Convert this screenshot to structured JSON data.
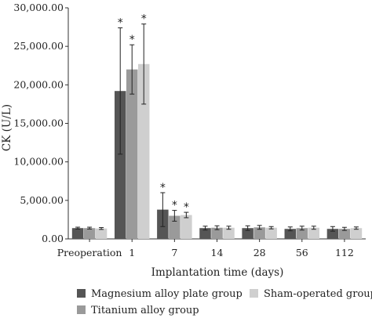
{
  "chart_data": {
    "type": "bar",
    "title": "",
    "xlabel": "Implantation time (days)",
    "ylabel": "CK (U/L)",
    "ylim": [
      0,
      30000
    ],
    "y_ticks": [
      "0.00",
      "5,000.00",
      "10,000.00",
      "15,000.00",
      "20,000.00",
      "25,000.00",
      "30,000.00"
    ],
    "y_tick_values": [
      0,
      5000,
      10000,
      15000,
      20000,
      25000,
      30000
    ],
    "categories": [
      "Preoperation",
      "1",
      "7",
      "14",
      "28",
      "56",
      "112"
    ],
    "series": [
      {
        "name": "Magnesium alloy plate group",
        "color": "#555555",
        "values": [
          1400,
          19200,
          3800,
          1400,
          1400,
          1300,
          1300
        ],
        "errors": [
          120,
          8200,
          2200,
          250,
          300,
          250,
          300
        ],
        "significant": [
          false,
          true,
          true,
          false,
          false,
          false,
          false
        ]
      },
      {
        "name": "Titanium alloy group",
        "color": "#9a9a9a",
        "values": [
          1400,
          22000,
          3000,
          1450,
          1500,
          1400,
          1300
        ],
        "errors": [
          120,
          3200,
          700,
          250,
          250,
          250,
          200
        ],
        "significant": [
          false,
          true,
          true,
          false,
          false,
          false,
          false
        ]
      },
      {
        "name": "Sham-operated group",
        "color": "#cfcfcf",
        "values": [
          1350,
          22700,
          3100,
          1450,
          1450,
          1450,
          1400
        ],
        "errors": [
          120,
          5200,
          350,
          200,
          150,
          200,
          150
        ],
        "significant": [
          false,
          true,
          true,
          false,
          false,
          false,
          false
        ]
      }
    ],
    "significance_marker": "*",
    "legend_position": "bottom",
    "grid": false
  }
}
